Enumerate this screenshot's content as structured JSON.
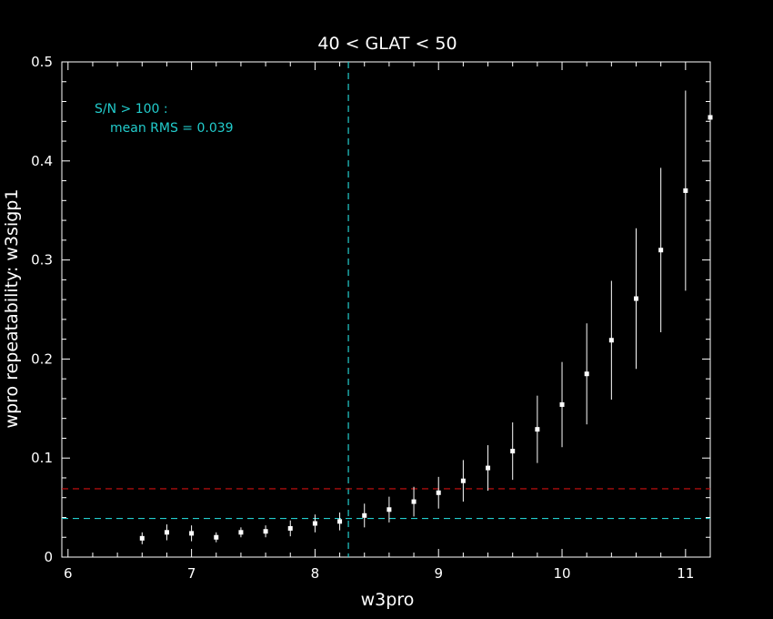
{
  "chart_data": {
    "type": "scatter",
    "title": "40 < GLAT < 50",
    "xlabel": "w3pro",
    "ylabel": "wpro repeatability: w3sigp1",
    "xlim": [
      5.95,
      11.2
    ],
    "ylim": [
      0,
      0.5
    ],
    "xticks": [
      6,
      7,
      8,
      9,
      10,
      11
    ],
    "xtick_labels": [
      "6",
      "7",
      "8",
      "9",
      "10",
      "11"
    ],
    "yticks": [
      0,
      0.1,
      0.2,
      0.3,
      0.4,
      0.5
    ],
    "ytick_labels": [
      "0",
      "0.1",
      "0.2",
      "0.3",
      "0.4",
      "0.5"
    ],
    "grid": false,
    "annotation": {
      "line1": "S/N > 100 :",
      "line2": "mean RMS =  0.039"
    },
    "reference_lines": {
      "vertical_x": 8.27,
      "horizontal": [
        {
          "y": 0.039,
          "color": "#22cccc"
        },
        {
          "y": 0.069,
          "color": "#cc1111"
        }
      ]
    },
    "series": [
      {
        "x": [
          6.6,
          6.8,
          7.0,
          7.2,
          7.4,
          7.6,
          7.8,
          8.0,
          8.2,
          8.4,
          8.6,
          8.8,
          9.0,
          9.2,
          9.4,
          9.6,
          9.8,
          10.0,
          10.2,
          10.4,
          10.6,
          10.8,
          11.0,
          11.2
        ],
        "y": [
          0.019,
          0.025,
          0.024,
          0.02,
          0.025,
          0.026,
          0.029,
          0.034,
          0.036,
          0.042,
          0.048,
          0.056,
          0.065,
          0.077,
          0.09,
          0.107,
          0.129,
          0.154,
          0.185,
          0.219,
          0.261,
          0.31,
          0.37,
          0.444
        ],
        "err": [
          0.006,
          0.008,
          0.008,
          0.005,
          0.005,
          0.006,
          0.008,
          0.009,
          0.009,
          0.012,
          0.013,
          0.015,
          0.016,
          0.021,
          0.023,
          0.029,
          0.034,
          0.043,
          0.051,
          0.06,
          0.071,
          0.083,
          0.101,
          0.12
        ]
      }
    ],
    "colors": {
      "background": "#000000",
      "axes": "#ffffff",
      "points": "#ffffff",
      "annotation": "#22cccc",
      "vline": "#22cccc"
    }
  }
}
